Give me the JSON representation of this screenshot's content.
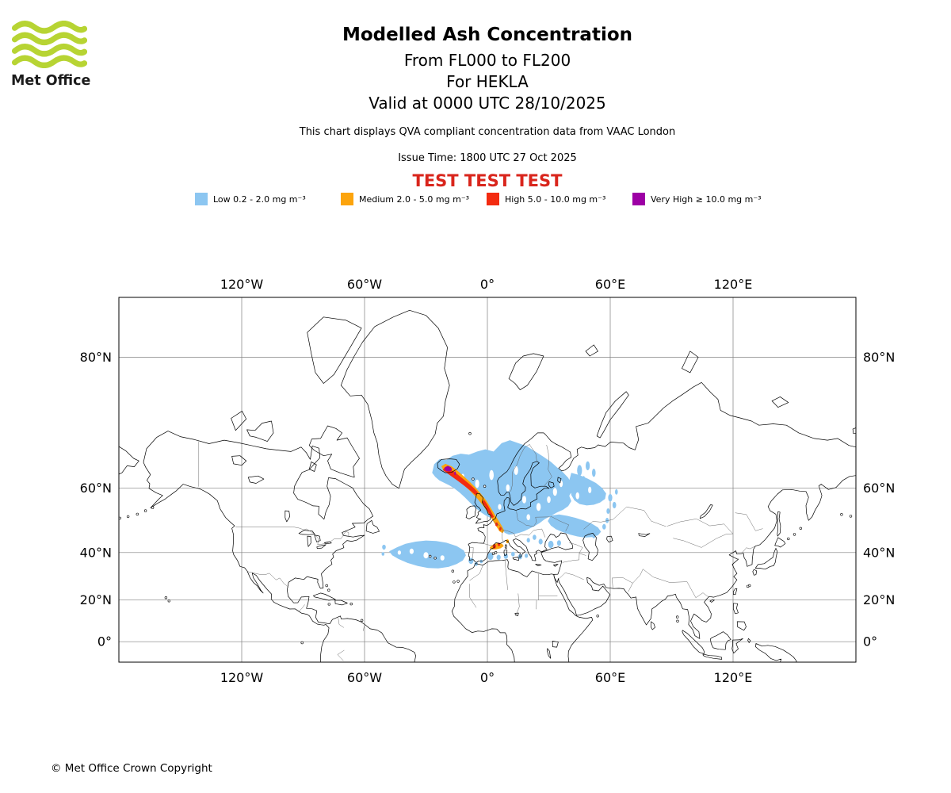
{
  "header": {
    "logo_text": "Met Office",
    "logo_color": "#b7d433",
    "title": "Modelled Ash Concentration",
    "subtitle_fl": "From FL000 to FL200",
    "subtitle_volcano": "For HEKLA",
    "subtitle_valid": "Valid at 0000 UTC 28/10/2025",
    "description": "This chart displays QVA compliant concentration data from VAAC London",
    "issue_time": "Issue Time: 1800 UTC 27 Oct 2025",
    "test_banner": "TEST TEST TEST",
    "test_color": "#d9251c"
  },
  "legend": [
    {
      "key": "low",
      "label": "Low 0.2 - 2.0 mg m⁻³",
      "color": "#8cc6f1"
    },
    {
      "key": "medium",
      "label": "Medium 2.0 - 5.0 mg m⁻³",
      "color": "#fca40d"
    },
    {
      "key": "high",
      "label": "High 5.0 - 10.0 mg m⁻³",
      "color": "#f32b10"
    },
    {
      "key": "very_high",
      "label": "Very High ≥ 10.0 mg m⁻³",
      "color": "#9d00a5"
    }
  ],
  "footer": {
    "copyright": "© Met Office Crown Copyright"
  },
  "chart_data": {
    "type": "filled_contour_map",
    "projection": "mercator",
    "volcano": "HEKLA",
    "layer": "FL000 to FL200",
    "valid_at": "0000 UTC 28/10/2025",
    "issued_at": "1800 UTC 27 Oct 2025",
    "units": "mg m⁻³",
    "lon_range": [
      -180,
      180
    ],
    "lat_range": [
      -10,
      84
    ],
    "x_ticks": [
      {
        "label": "120°W",
        "lon": -120
      },
      {
        "label": "60°W",
        "lon": -60
      },
      {
        "label": "0°",
        "lon": 0
      },
      {
        "label": "60°E",
        "lon": 60
      },
      {
        "label": "120°E",
        "lon": 120
      }
    ],
    "y_ticks": [
      {
        "label": "80°N",
        "lat": 80
      },
      {
        "label": "60°N",
        "lat": 60
      },
      {
        "label": "40°N",
        "lat": 40
      },
      {
        "label": "20°N",
        "lat": 20
      },
      {
        "label": "0°",
        "lat": 0
      }
    ],
    "levels": [
      {
        "key": "low",
        "threshold": [
          0.2,
          2.0
        ],
        "polys": [
          [
            [
              -27,
              63.5
            ],
            [
              -26,
              65.3
            ],
            [
              -23.5,
              66.3
            ],
            [
              -20,
              66.2
            ],
            [
              -17,
              67.0
            ],
            [
              -13,
              67.4
            ],
            [
              -9,
              67.2
            ],
            [
              -5,
              67.8
            ],
            [
              -1,
              68.2
            ],
            [
              3,
              67.8
            ],
            [
              7,
              69.3
            ],
            [
              11,
              69.8
            ],
            [
              15,
              69.3
            ],
            [
              19,
              68.8
            ],
            [
              23,
              67.9
            ],
            [
              27,
              66.9
            ],
            [
              31,
              65.8
            ],
            [
              34,
              64.7
            ],
            [
              37,
              63.6
            ],
            [
              39.5,
              62.4
            ],
            [
              41,
              61.0
            ],
            [
              41.5,
              59.4
            ],
            [
              40,
              58.0
            ],
            [
              41,
              56.6
            ],
            [
              39.5,
              55.2
            ],
            [
              37,
              54.2
            ],
            [
              34,
              53.4
            ],
            [
              31,
              52.4
            ],
            [
              28,
              51.4
            ],
            [
              25.5,
              50.2
            ],
            [
              23,
              49.2
            ],
            [
              20.5,
              48.4
            ],
            [
              18,
              47.6
            ],
            [
              15.5,
              47.0
            ],
            [
              13,
              46.6
            ],
            [
              10.5,
              46.4
            ],
            [
              8.5,
              47.0
            ],
            [
              7,
              48.2
            ],
            [
              5.5,
              49.6
            ],
            [
              3.5,
              50.8
            ],
            [
              1.5,
              51.8
            ],
            [
              -1,
              52.6
            ],
            [
              -3.5,
              53.6
            ],
            [
              -6,
              54.8
            ],
            [
              -8.5,
              56.2
            ],
            [
              -11,
              57.6
            ],
            [
              -13.5,
              58.8
            ],
            [
              -16,
              59.8
            ],
            [
              -18.5,
              60.6
            ],
            [
              -21,
              61.2
            ],
            [
              -23.5,
              61.8
            ],
            [
              -25.5,
              62.6
            ]
          ],
          [
            [
              41,
              63.5
            ],
            [
              45,
              63.0
            ],
            [
              49,
              62.2
            ],
            [
              53,
              61.2
            ],
            [
              56,
              60.0
            ],
            [
              58,
              58.6
            ],
            [
              57.5,
              57.2
            ],
            [
              55,
              56.2
            ],
            [
              52,
              55.6
            ],
            [
              48.5,
              55.4
            ],
            [
              45,
              55.8
            ],
            [
              42.5,
              56.8
            ],
            [
              41,
              58.2
            ],
            [
              40.5,
              60.0
            ],
            [
              40,
              61.8
            ]
          ],
          [
            [
              31,
              52.5
            ],
            [
              35,
              52.8
            ],
            [
              39,
              52.4
            ],
            [
              43,
              51.8
            ],
            [
              47,
              51.0
            ],
            [
              51,
              50.0
            ],
            [
              54,
              48.8
            ],
            [
              55.5,
              47.4
            ],
            [
              54,
              46.2
            ],
            [
              51,
              45.6
            ],
            [
              47.5,
              45.4
            ],
            [
              44,
              45.8
            ],
            [
              40.5,
              46.4
            ],
            [
              37,
              47.2
            ],
            [
              33.5,
              48.2
            ],
            [
              31,
              49.4
            ],
            [
              29.5,
              50.8
            ]
          ],
          [
            [
              -48,
              40.5
            ],
            [
              -44,
              42.0
            ],
            [
              -40,
              43.2
            ],
            [
              -35,
              44.0
            ],
            [
              -30,
              44.4
            ],
            [
              -25,
              44.2
            ],
            [
              -20,
              43.6
            ],
            [
              -15,
              42.4
            ],
            [
              -11.5,
              40.8
            ],
            [
              -10.5,
              39.0
            ],
            [
              -12,
              37.0
            ],
            [
              -15,
              35.6
            ],
            [
              -19,
              34.4
            ],
            [
              -24,
              33.8
            ],
            [
              -29,
              34.0
            ],
            [
              -34,
              34.8
            ],
            [
              -39,
              36.0
            ],
            [
              -43.5,
              37.6
            ],
            [
              -46.5,
              39.0
            ]
          ]
        ],
        "spots": [
          [
            -50.5,
            42,
            0.9
          ],
          [
            -51,
            39.5,
            0.7
          ],
          [
            -8,
            36.8,
            1.2
          ],
          [
            -5.5,
            35.6,
            0.8
          ],
          [
            -3,
            36.6,
            0.7
          ],
          [
            1.5,
            38.6,
            1.4
          ],
          [
            5.5,
            38.2,
            1.0
          ],
          [
            9,
            38.6,
            1.0
          ],
          [
            12.5,
            39.4,
            0.9
          ],
          [
            16,
            38.4,
            1.0
          ],
          [
            19,
            38.8,
            0.8
          ],
          [
            31,
            43,
            1.3
          ],
          [
            35,
            43.5,
            1.0
          ],
          [
            60,
            57.5,
            1.0
          ],
          [
            62,
            55.5,
            0.9
          ],
          [
            59,
            53.8,
            0.8
          ],
          [
            63,
            59,
            0.7
          ],
          [
            57,
            49,
            0.9
          ],
          [
            58.5,
            51,
            0.8
          ],
          [
            26,
            44,
            1.0
          ],
          [
            23,
            45.5,
            0.9
          ],
          [
            20,
            44.5,
            0.8
          ],
          [
            45,
            64,
            1.2
          ],
          [
            49,
            65,
            1.0
          ],
          [
            52,
            63.5,
            0.9
          ],
          [
            47,
            62,
            0.8
          ],
          [
            48,
            47,
            0.9
          ],
          [
            52,
            46,
            0.8
          ]
        ],
        "holes": [
          [
            -5,
            61,
            1.0
          ],
          [
            2,
            63,
            1.1
          ],
          [
            10,
            60,
            0.9
          ],
          [
            18,
            57,
            1.0
          ],
          [
            25,
            55,
            1.1
          ],
          [
            30,
            57,
            0.9
          ],
          [
            -12,
            62.5,
            0.8
          ],
          [
            14,
            64,
            1.0
          ],
          [
            6,
            55,
            0.8
          ],
          [
            20,
            52,
            0.9
          ],
          [
            33,
            59,
            1.0
          ],
          [
            36,
            61,
            0.8
          ],
          [
            -30,
            39,
            1.2
          ],
          [
            -37,
            40.5,
            1.0
          ],
          [
            -22,
            38,
            1.0
          ],
          [
            -43,
            40,
            0.8
          ],
          [
            28,
            48.5,
            0.8
          ],
          [
            44,
            58,
            0.9
          ],
          [
            50,
            59.5,
            0.8
          ]
        ]
      },
      {
        "key": "medium",
        "threshold": [
          2.0,
          5.0
        ],
        "polys": [
          [
            [
              -22.5,
              64.9
            ],
            [
              -20.5,
              65.4
            ],
            [
              -17.5,
              64.9
            ],
            [
              -14.5,
              63.9
            ],
            [
              -11.5,
              62.7
            ],
            [
              -8.5,
              61.4
            ],
            [
              -5.5,
              59.9
            ],
            [
              -3,
              58.4
            ],
            [
              -0.5,
              56.7
            ],
            [
              1.5,
              54.9
            ],
            [
              3.5,
              52.9
            ],
            [
              5.5,
              50.9
            ],
            [
              7.2,
              49.1
            ],
            [
              8.2,
              47.7
            ],
            [
              7.4,
              46.9
            ],
            [
              5.8,
              47.6
            ],
            [
              4.2,
              49.3
            ],
            [
              2.4,
              51.3
            ],
            [
              0.4,
              53.3
            ],
            [
              -2,
              55.3
            ],
            [
              -4.8,
              57.2
            ],
            [
              -8,
              59.0
            ],
            [
              -11.5,
              60.7
            ],
            [
              -15,
              62.1
            ],
            [
              -18.5,
              63.2
            ],
            [
              -21.5,
              64.0
            ]
          ],
          [
            [
              1.2,
              42.0
            ],
            [
              3,
              43.1
            ],
            [
              5.2,
              43.5
            ],
            [
              7.2,
              43.2
            ],
            [
              8,
              42.4
            ],
            [
              6.5,
              41.6
            ],
            [
              4.2,
              41.2
            ],
            [
              2.2,
              41.2
            ],
            [
              1.2,
              41.6
            ]
          ]
        ],
        "spots": [
          [
            9.8,
            44.1,
            0.7
          ]
        ]
      },
      {
        "key": "high",
        "threshold": [
          5.0,
          10.0
        ],
        "polys": [
          [
            [
              -21,
              64.6
            ],
            [
              -18,
              64.2
            ],
            [
              -15,
              63.3
            ],
            [
              -12,
              62.2
            ],
            [
              -9,
              61.0
            ],
            [
              -6.5,
              59.9
            ],
            [
              -4.5,
              58.8
            ],
            [
              -5.8,
              58.2
            ],
            [
              -8.5,
              59.4
            ],
            [
              -11.5,
              60.6
            ],
            [
              -14.5,
              61.7
            ],
            [
              -17.5,
              62.7
            ],
            [
              -20.2,
              63.6
            ],
            [
              -21.8,
              64.1
            ]
          ],
          [
            [
              -1.5,
              56.9
            ],
            [
              0.3,
              55.3
            ],
            [
              1.8,
              53.7
            ],
            [
              3.2,
              52.1
            ],
            [
              2.2,
              51.7
            ],
            [
              0.6,
              53.3
            ],
            [
              -0.9,
              54.9
            ],
            [
              -2.6,
              56.4
            ]
          ]
        ],
        "spots": [
          [
            4.5,
            49.8,
            0.6
          ],
          [
            6.3,
            48.3,
            0.55
          ],
          [
            3.4,
            42.3,
            0.8
          ],
          [
            5.6,
            43.0,
            0.6
          ]
        ]
      },
      {
        "key": "very_high",
        "threshold": [
          10.0,
          null
        ],
        "polys": [
          [
            [
              -20.8,
              64.7
            ],
            [
              -19.3,
              65.0
            ],
            [
              -17.8,
              64.7
            ],
            [
              -17.2,
              64.2
            ],
            [
              -18.5,
              63.8
            ],
            [
              -20.2,
              63.9
            ],
            [
              -21.0,
              64.3
            ]
          ]
        ],
        "spots": [
          [
            -15.8,
            63.4,
            0.4
          ]
        ]
      }
    ]
  }
}
